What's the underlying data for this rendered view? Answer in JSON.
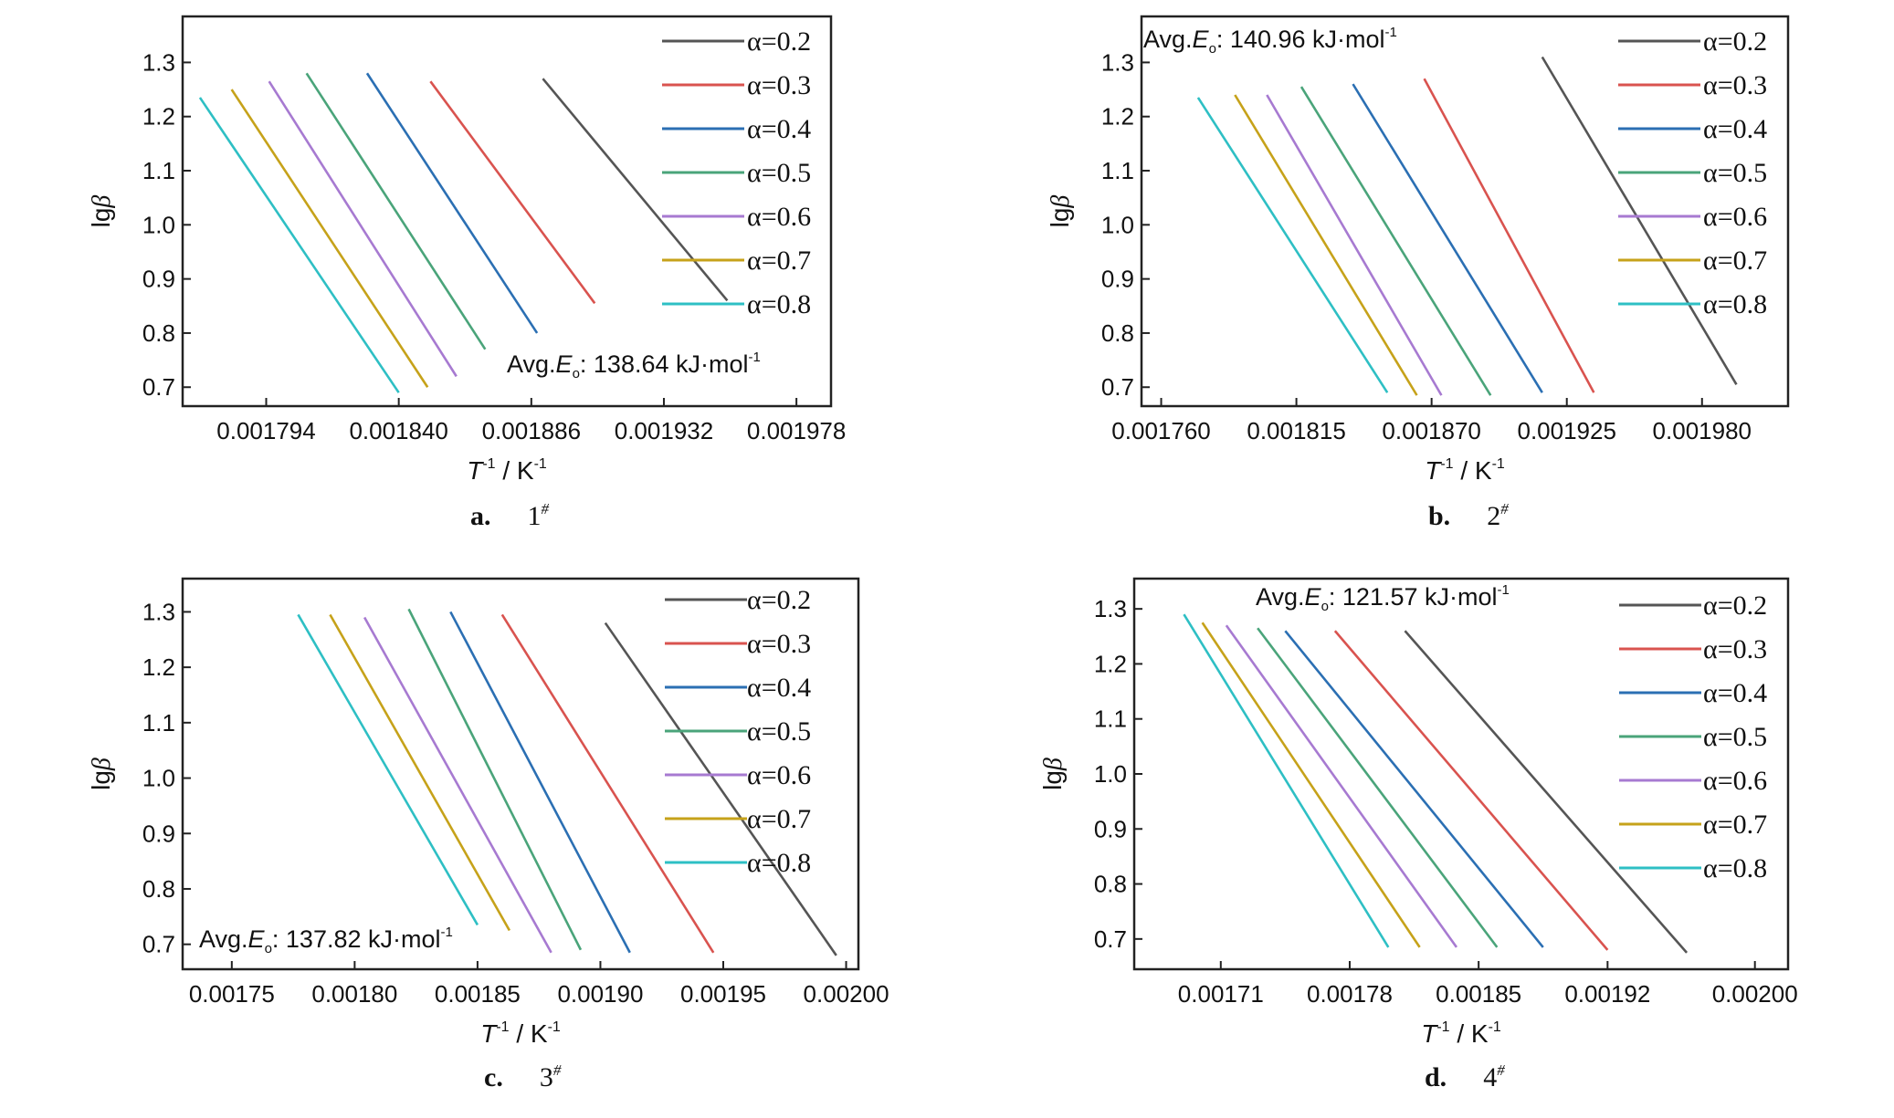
{
  "panel_captions": [
    {
      "letter": "a.",
      "num": "1",
      "sup": "#"
    },
    {
      "letter": "b.",
      "num": "2",
      "sup": "#"
    },
    {
      "letter": "c.",
      "num": "3",
      "sup": "#"
    },
    {
      "letter": "d.",
      "num": "4",
      "sup": "#"
    }
  ],
  "legend_labels": [
    "α=0.2",
    "α=0.3",
    "α=0.4",
    "α=0.5",
    "α=0.6",
    "α=0.7",
    "α=0.8"
  ],
  "chart_data": [
    {
      "type": "line",
      "caption": "a. 1#",
      "annotation": {
        "prefix": "Avg.",
        "sym": "E",
        "sub": "o",
        "value": ": 138.64 kJ·mol",
        "sup": "-1"
      },
      "ylabel": "lgβ",
      "xlabel": "T-1 / K-1",
      "xlim": [
        0.001765,
        0.00199
      ],
      "ylim": [
        0.665,
        1.385
      ],
      "xticks": [
        0.001794,
        0.00184,
        0.001886,
        0.001932,
        0.001978
      ],
      "xtick_labels": [
        "0.001794",
        "0.001840",
        "0.001886",
        "0.001932",
        "0.001978"
      ],
      "yticks": [
        0.7,
        0.8,
        0.9,
        1.0,
        1.1,
        1.2,
        1.3
      ],
      "ytick_labels": [
        "0.7",
        "0.8",
        "0.9",
        "1.0",
        "1.1",
        "1.2",
        "1.3"
      ],
      "series": [
        {
          "name": "α=0.2",
          "color": "#555555",
          "x": [
            0.00189,
            0.001954
          ],
          "y": [
            1.27,
            0.86
          ]
        },
        {
          "name": "α=0.3",
          "color": "#d9534f",
          "x": [
            0.001851,
            0.001908
          ],
          "y": [
            1.265,
            0.855
          ]
        },
        {
          "name": "α=0.4",
          "color": "#2b6fb3",
          "x": [
            0.001829,
            0.001888
          ],
          "y": [
            1.28,
            0.8
          ]
        },
        {
          "name": "α=0.5",
          "color": "#4aa47a",
          "x": [
            0.001808,
            0.00187
          ],
          "y": [
            1.28,
            0.77
          ]
        },
        {
          "name": "α=0.6",
          "color": "#a77ad1",
          "x": [
            0.001795,
            0.00186
          ],
          "y": [
            1.265,
            0.72
          ]
        },
        {
          "name": "α=0.7",
          "color": "#c6a21a",
          "x": [
            0.001782,
            0.00185
          ],
          "y": [
            1.25,
            0.7
          ]
        },
        {
          "name": "α=0.8",
          "color": "#2ebfc4",
          "x": [
            0.001771,
            0.00184
          ],
          "y": [
            1.235,
            0.69
          ]
        }
      ]
    },
    {
      "type": "line",
      "caption": "b. 2#",
      "annotation": {
        "prefix": "Avg.",
        "sym": "E",
        "sub": "o",
        "value": ": 140.96 kJ·mol",
        "sup": "-1"
      },
      "ylabel": "lgβ",
      "xlabel": "T-1 / K-1",
      "xlim": [
        0.001752,
        0.002015
      ],
      "ylim": [
        0.665,
        1.385
      ],
      "xticks": [
        0.00176,
        0.001815,
        0.00187,
        0.001925,
        0.00198
      ],
      "xtick_labels": [
        "0.001760",
        "0.001815",
        "0.001870",
        "0.001925",
        "0.001980"
      ],
      "yticks": [
        0.7,
        0.8,
        0.9,
        1.0,
        1.1,
        1.2,
        1.3
      ],
      "ytick_labels": [
        "0.7",
        "0.8",
        "0.9",
        "1.0",
        "1.1",
        "1.2",
        "1.3"
      ],
      "series": [
        {
          "name": "α=0.2",
          "color": "#555555",
          "x": [
            0.001915,
            0.001994
          ],
          "y": [
            1.31,
            0.705
          ]
        },
        {
          "name": "α=0.3",
          "color": "#d9534f",
          "x": [
            0.001867,
            0.001936
          ],
          "y": [
            1.27,
            0.69
          ]
        },
        {
          "name": "α=0.4",
          "color": "#2b6fb3",
          "x": [
            0.001838,
            0.001915
          ],
          "y": [
            1.26,
            0.69
          ]
        },
        {
          "name": "α=0.5",
          "color": "#4aa47a",
          "x": [
            0.001817,
            0.001894
          ],
          "y": [
            1.255,
            0.685
          ]
        },
        {
          "name": "α=0.6",
          "color": "#a77ad1",
          "x": [
            0.001803,
            0.001874
          ],
          "y": [
            1.24,
            0.685
          ]
        },
        {
          "name": "α=0.7",
          "color": "#c6a21a",
          "x": [
            0.00179,
            0.001864
          ],
          "y": [
            1.24,
            0.685
          ]
        },
        {
          "name": "α=0.8",
          "color": "#2ebfc4",
          "x": [
            0.001775,
            0.001852
          ],
          "y": [
            1.235,
            0.69
          ]
        }
      ]
    },
    {
      "type": "line",
      "caption": "c. 3#",
      "annotation": {
        "prefix": "Avg.",
        "sym": "E",
        "sub": "o",
        "value": ": 137.82 kJ·mol",
        "sup": "-1"
      },
      "ylabel": "lgβ",
      "xlabel": "T-1 / K-1",
      "xlim": [
        0.00173,
        0.002005
      ],
      "ylim": [
        0.655,
        1.36
      ],
      "xticks": [
        0.00175,
        0.0018,
        0.00185,
        0.0019,
        0.00195,
        0.002
      ],
      "xtick_labels": [
        "0.00175",
        "0.00180",
        "0.00185",
        "0.00190",
        "0.00195",
        "0.00200"
      ],
      "yticks": [
        0.7,
        0.8,
        0.9,
        1.0,
        1.1,
        1.2,
        1.3
      ],
      "ytick_labels": [
        "0.7",
        "0.8",
        "0.9",
        "1.0",
        "1.1",
        "1.2",
        "1.3"
      ],
      "series": [
        {
          "name": "α=0.2",
          "color": "#555555",
          "x": [
            0.001902,
            0.001996
          ],
          "y": [
            1.28,
            0.68
          ]
        },
        {
          "name": "α=0.3",
          "color": "#d9534f",
          "x": [
            0.00186,
            0.001946
          ],
          "y": [
            1.295,
            0.685
          ]
        },
        {
          "name": "α=0.4",
          "color": "#2b6fb3",
          "x": [
            0.001839,
            0.001912
          ],
          "y": [
            1.3,
            0.685
          ]
        },
        {
          "name": "α=0.5",
          "color": "#4aa47a",
          "x": [
            0.001822,
            0.001892
          ],
          "y": [
            1.305,
            0.69
          ]
        },
        {
          "name": "α=0.6",
          "color": "#a77ad1",
          "x": [
            0.001804,
            0.00188
          ],
          "y": [
            1.29,
            0.685
          ]
        },
        {
          "name": "α=0.7",
          "color": "#c6a21a",
          "x": [
            0.00179,
            0.001863
          ],
          "y": [
            1.295,
            0.725
          ]
        },
        {
          "name": "α=0.8",
          "color": "#2ebfc4",
          "x": [
            0.001777,
            0.00185
          ],
          "y": [
            1.295,
            0.735
          ]
        }
      ]
    },
    {
      "type": "line",
      "caption": "d. 4#",
      "annotation": {
        "prefix": "Avg.",
        "sym": "E",
        "sub": "o",
        "value": ": 121.57 kJ·mol",
        "sup": "-1"
      },
      "ylabel": "lgβ",
      "xlabel": "T-1 / K-1",
      "xlim": [
        0.001663,
        0.002018
      ],
      "ylim": [
        0.645,
        1.355
      ],
      "xticks": [
        0.00171,
        0.00178,
        0.00185,
        0.00192,
        0.002
      ],
      "xtick_labels": [
        "0.00171",
        "0.00178",
        "0.00185",
        "0.00192",
        "0.00200"
      ],
      "yticks": [
        0.7,
        0.8,
        0.9,
        1.0,
        1.1,
        1.2,
        1.3
      ],
      "ytick_labels": [
        "0.7",
        "0.8",
        "0.9",
        "1.0",
        "1.1",
        "1.2",
        "1.3"
      ],
      "series": [
        {
          "name": "α=0.2",
          "color": "#555555",
          "x": [
            0.00181,
            0.001963
          ],
          "y": [
            1.26,
            0.675
          ]
        },
        {
          "name": "α=0.3",
          "color": "#d9534f",
          "x": [
            0.001772,
            0.00192
          ],
          "y": [
            1.26,
            0.68
          ]
        },
        {
          "name": "α=0.4",
          "color": "#2b6fb3",
          "x": [
            0.001745,
            0.001885
          ],
          "y": [
            1.26,
            0.685
          ]
        },
        {
          "name": "α=0.5",
          "color": "#4aa47a",
          "x": [
            0.00173,
            0.00186
          ],
          "y": [
            1.265,
            0.685
          ]
        },
        {
          "name": "α=0.6",
          "color": "#a77ad1",
          "x": [
            0.001713,
            0.001838
          ],
          "y": [
            1.27,
            0.685
          ]
        },
        {
          "name": "α=0.7",
          "color": "#c6a21a",
          "x": [
            0.0017,
            0.001818
          ],
          "y": [
            1.275,
            0.685
          ]
        },
        {
          "name": "α=0.8",
          "color": "#2ebfc4",
          "x": [
            0.00169,
            0.001801
          ],
          "y": [
            1.29,
            0.685
          ]
        }
      ]
    }
  ]
}
